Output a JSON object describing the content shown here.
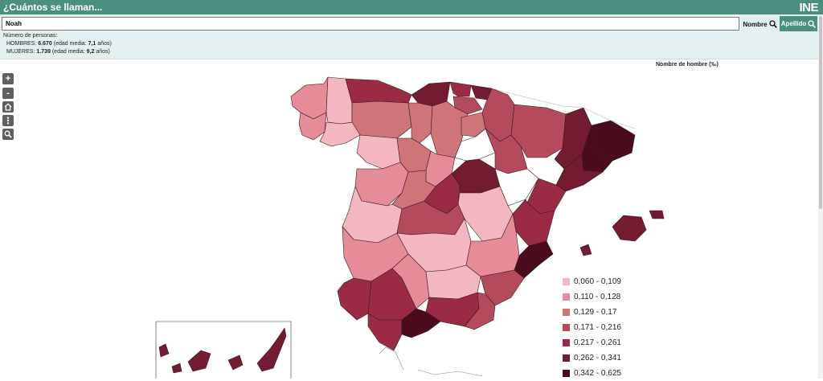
{
  "header": {
    "title": "¿Cuántos se llaman...",
    "logo": "INE"
  },
  "search": {
    "value": "Noah",
    "nombre_label": "Nombre",
    "apellido_label": "Apellido"
  },
  "results": {
    "heading": "Número de personas:",
    "men_label": "HOMBRES:",
    "men_count": "6.670",
    "men_age_prefix": "(edad media:",
    "men_age": "7,1",
    "men_age_suffix": "años)",
    "women_label": "MUJERES:",
    "women_count": "1.739",
    "women_age_prefix": "(edad media:",
    "women_age": "9,2",
    "women_age_suffix": "años)"
  },
  "map": {
    "title": "Nombre de hombre (‰)"
  },
  "zoom_controls": [
    {
      "name": "zoom-in-button",
      "glyph": "+"
    },
    {
      "name": "zoom-out-button",
      "glyph": "-"
    },
    {
      "name": "home-button",
      "glyph": "⌂"
    },
    {
      "name": "menu-button",
      "glyph": "⋮"
    },
    {
      "name": "zoom-search-button",
      "glyph": "⌕"
    }
  ],
  "legend": [
    {
      "label": "0,060 - 0,109",
      "color": "#f4b6c0"
    },
    {
      "label": "0,110 - 0,128",
      "color": "#e58c98"
    },
    {
      "label": "0,129 - 0,17",
      "color": "#cf7579"
    },
    {
      "label": "0,171 - 0,216",
      "color": "#b54a5c"
    },
    {
      "label": "0,217 - 0,261",
      "color": "#9b2b45"
    },
    {
      "label": "0,262 - 0,341",
      "color": "#731c31"
    },
    {
      "label": "0,342 - 0,625",
      "color": "#4a0b1c"
    }
  ],
  "colors": {
    "header": "#4a8f7f",
    "band": "#e3f0ef"
  }
}
